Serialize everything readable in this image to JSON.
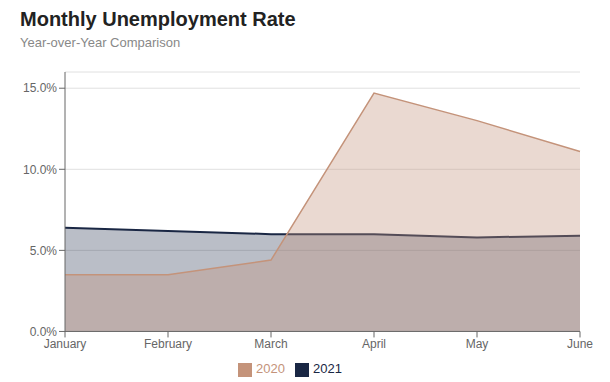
{
  "chart_data": {
    "type": "area",
    "title": "Monthly Unemployment Rate",
    "subtitle": "Year-over-Year Comparison",
    "categories": [
      "January",
      "February",
      "March",
      "April",
      "May",
      "June"
    ],
    "series": [
      {
        "name": "2021",
        "color": "#1a2744",
        "values": [
          6.4,
          6.2,
          6.0,
          6.0,
          5.8,
          5.9
        ]
      },
      {
        "name": "2020",
        "color": "#c4937a",
        "values": [
          3.5,
          3.5,
          4.4,
          14.7,
          13.0,
          11.1
        ]
      }
    ],
    "ylim": [
      0,
      16.0
    ],
    "yticks": [
      {
        "value": 0.0,
        "label": "0.0%"
      },
      {
        "value": 5.0,
        "label": "5.0%"
      },
      {
        "value": 10.0,
        "label": "10.0%"
      },
      {
        "value": 15.0,
        "label": "15.0%"
      }
    ],
    "grid": true,
    "legend": "bottom"
  }
}
